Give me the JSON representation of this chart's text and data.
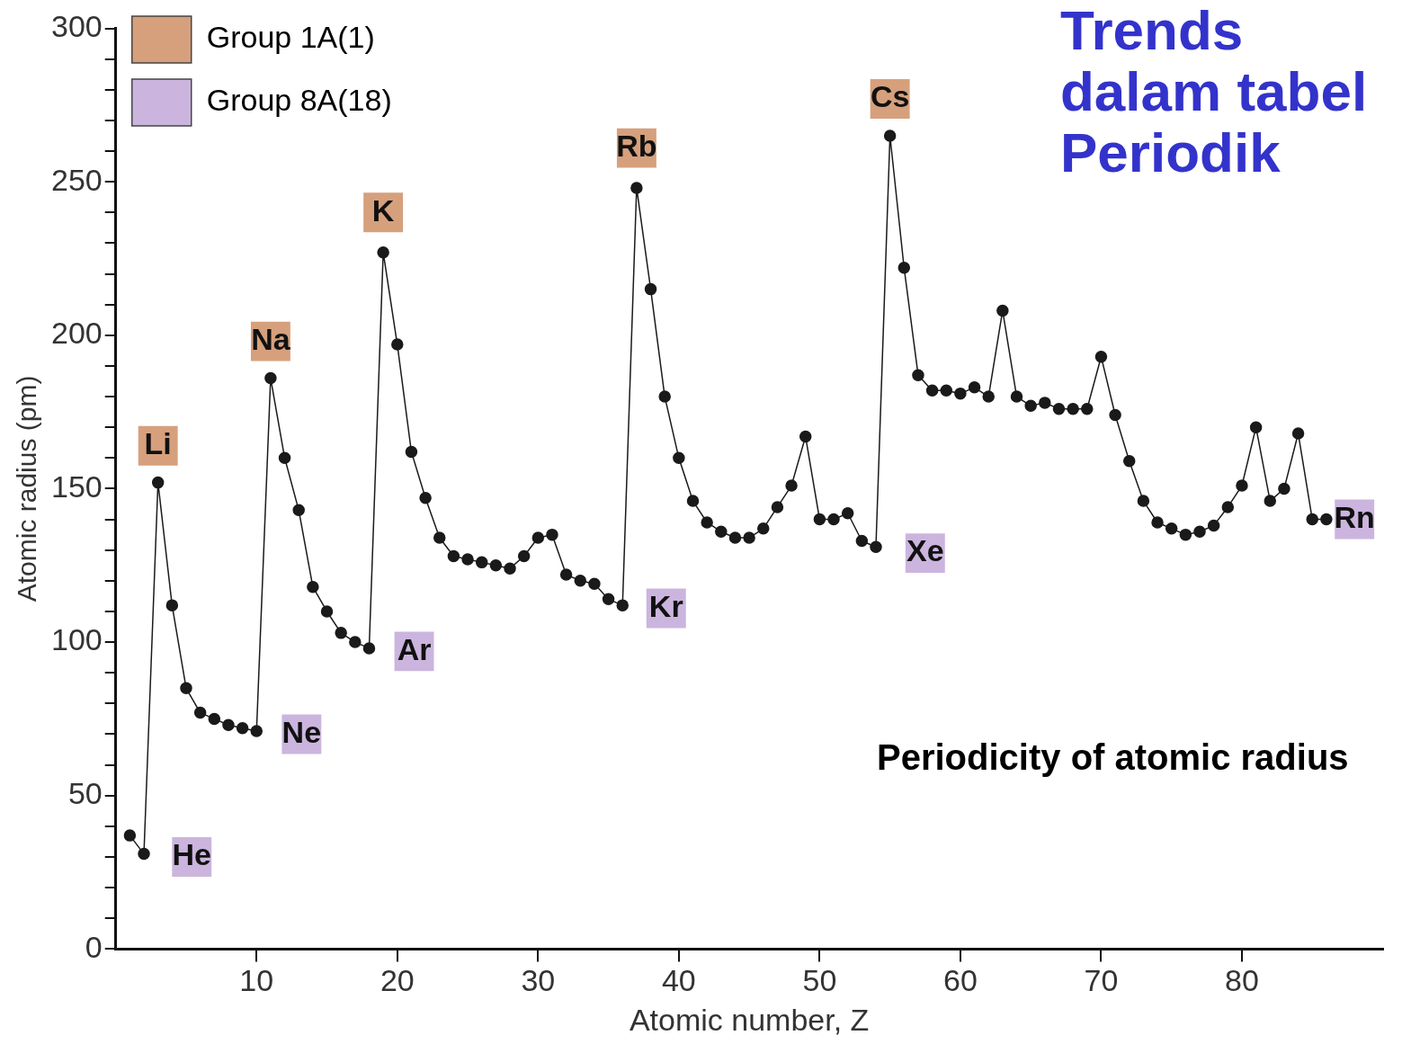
{
  "chart_data": {
    "type": "line",
    "title": "Trends dalam tabel Periodik",
    "xlabel": "Atomic number, Z",
    "ylabel": "Atomic radius (pm)",
    "annotations": [
      "Periodicity of atomic radius"
    ],
    "xlim": [
      0,
      90
    ],
    "xticks": [
      10,
      20,
      30,
      40,
      50,
      60,
      70,
      80
    ],
    "ylim": [
      0,
      300
    ],
    "yticks": [
      0,
      {
        "value": 10,
        "label": null
      },
      {
        "value": 20,
        "label": null
      },
      {
        "value": 30,
        "label": null
      },
      {
        "value": 40,
        "label": null
      },
      50,
      {
        "value": 60,
        "label": null
      },
      {
        "value": 70,
        "label": null
      },
      {
        "value": 80,
        "label": null
      },
      {
        "value": 90,
        "label": null
      },
      100,
      {
        "value": 110,
        "label": null
      },
      {
        "value": 120,
        "label": null
      },
      {
        "value": 130,
        "label": null
      },
      {
        "value": 140,
        "label": null
      },
      150,
      {
        "value": 160,
        "label": null
      },
      {
        "value": 170,
        "label": null
      },
      {
        "value": 180,
        "label": null
      },
      {
        "value": 190,
        "label": null
      },
      200,
      {
        "value": 210,
        "label": null
      },
      {
        "value": 220,
        "label": null
      },
      {
        "value": 230,
        "label": null
      },
      {
        "value": 240,
        "label": null
      },
      250,
      {
        "value": 260,
        "label": null
      },
      {
        "value": 270,
        "label": null
      },
      {
        "value": 280,
        "label": null
      },
      {
        "value": 290,
        "label": null
      },
      300
    ],
    "grid": false,
    "legend": "top left",
    "marker": "circle",
    "line_style": "solid",
    "series": [
      {
        "type": "line",
        "color": "#1a1a1a",
        "x": [
          1,
          2,
          3,
          4,
          5,
          6,
          7,
          8,
          9,
          10,
          11,
          12,
          13,
          14,
          15,
          16,
          17,
          18,
          19,
          20,
          21,
          22,
          23,
          24,
          25,
          26,
          27,
          28,
          29,
          30,
          31,
          32,
          33,
          34,
          35,
          36,
          37,
          38,
          39,
          40,
          41,
          42,
          43,
          44,
          45,
          46,
          47,
          48,
          49,
          50,
          51,
          52,
          53,
          54,
          55,
          56,
          57,
          58,
          59,
          60,
          61,
          62,
          63,
          64,
          65,
          66,
          67,
          68,
          69,
          70,
          71,
          72,
          73,
          74,
          75,
          76,
          77,
          78,
          79,
          80,
          81,
          82,
          83,
          84,
          85,
          86
        ],
        "values": [
          37,
          31,
          152,
          112,
          85,
          77,
          75,
          73,
          72,
          71,
          186,
          160,
          143,
          118,
          110,
          103,
          100,
          98,
          227,
          197,
          162,
          147,
          134,
          128,
          127,
          126,
          125,
          124,
          128,
          134,
          135,
          122,
          120,
          119,
          114,
          112,
          248,
          215,
          180,
          160,
          146,
          139,
          136,
          134,
          134,
          137,
          144,
          151,
          167,
          140,
          140,
          142,
          133,
          131,
          265,
          222,
          187,
          182,
          182,
          181,
          183,
          180,
          208,
          180,
          177,
          178,
          176,
          176,
          176,
          193,
          174,
          159,
          146,
          139,
          137,
          135,
          136,
          138,
          144,
          151,
          170,
          146,
          150,
          168,
          140,
          140
        ]
      },
      {
        "type": "scatter",
        "name": "Group 1A(1)",
        "color": "#d6a07d",
        "marker": "square",
        "x": [
          3,
          11,
          19,
          37,
          55
        ],
        "values": [
          164,
          198,
          240,
          261,
          277
        ],
        "value_labels": [
          "Li",
          "Na",
          "K",
          "Rb",
          "Cs"
        ]
      },
      {
        "type": "scatter",
        "name": "Group 8A(18)",
        "color": "#cbb5de",
        "marker": "square",
        "x": [
          5.4,
          13.2,
          21.2,
          39.1,
          57.5,
          88
        ],
        "values": [
          30,
          70,
          97,
          111,
          129,
          140
        ],
        "value_labels": [
          "He",
          "Ne",
          "Ar",
          "Kr",
          "Xe",
          "Rn"
        ]
      }
    ]
  }
}
